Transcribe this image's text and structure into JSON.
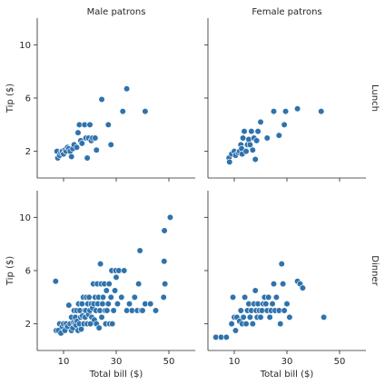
{
  "colors": {
    "marker": "#2f73ad",
    "axis": "#262626"
  },
  "chart_data": {
    "type": "scatter",
    "xlim": [
      0,
      60
    ],
    "ylim": [
      0,
      12
    ],
    "xticks": [
      10,
      30,
      50
    ],
    "yticks": [
      2,
      6,
      10
    ],
    "xlabel": "Total bill ($)",
    "ylabel": "Tip ($)",
    "col_labels": [
      "Male patrons",
      "Female patrons"
    ],
    "row_labels": [
      "Lunch",
      "Dinner"
    ],
    "panels": [
      {
        "row": 0,
        "col": 0,
        "points": [
          [
            7.5,
            2.0
          ],
          [
            7.8,
            1.5
          ],
          [
            8.5,
            1.7
          ],
          [
            9.0,
            1.9
          ],
          [
            9.5,
            2.0
          ],
          [
            10.0,
            1.8
          ],
          [
            10.5,
            2.1
          ],
          [
            11.0,
            2.0
          ],
          [
            11.5,
            2.3
          ],
          [
            12.0,
            2.2
          ],
          [
            12.5,
            2.0
          ],
          [
            13.0,
            1.6
          ],
          [
            13.5,
            2.2
          ],
          [
            14.0,
            2.5
          ],
          [
            15.0,
            2.3
          ],
          [
            15.5,
            3.4
          ],
          [
            16.0,
            4.0
          ],
          [
            16.5,
            2.8
          ],
          [
            17.0,
            2.6
          ],
          [
            18.0,
            4.0
          ],
          [
            18.5,
            3.0
          ],
          [
            19.0,
            1.5
          ],
          [
            19.5,
            3.0
          ],
          [
            20.0,
            4.0
          ],
          [
            20.5,
            2.8
          ],
          [
            21.0,
            3.0
          ],
          [
            22.0,
            3.0
          ],
          [
            22.5,
            2.1
          ],
          [
            24.5,
            5.9
          ],
          [
            27.0,
            4.0
          ],
          [
            28.0,
            2.5
          ],
          [
            32.5,
            5.0
          ],
          [
            34.0,
            6.7
          ],
          [
            41.0,
            5.0
          ]
        ]
      },
      {
        "row": 0,
        "col": 1,
        "points": [
          [
            8.0,
            1.5
          ],
          [
            8.2,
            1.2
          ],
          [
            9.0,
            1.8
          ],
          [
            10.0,
            2.0
          ],
          [
            10.5,
            1.7
          ],
          [
            11.5,
            1.9
          ],
          [
            12.0,
            2.0
          ],
          [
            12.5,
            2.5
          ],
          [
            12.8,
            2.2
          ],
          [
            13.0,
            1.8
          ],
          [
            13.3,
            3.0
          ],
          [
            13.8,
            3.5
          ],
          [
            14.5,
            2.0
          ],
          [
            15.0,
            2.5
          ],
          [
            15.5,
            2.9
          ],
          [
            16.0,
            2.5
          ],
          [
            16.5,
            3.5
          ],
          [
            17.0,
            2.1
          ],
          [
            17.5,
            3.0
          ],
          [
            18.0,
            1.4
          ],
          [
            18.5,
            2.8
          ],
          [
            19.0,
            3.5
          ],
          [
            20.0,
            4.2
          ],
          [
            22.5,
            3.0
          ],
          [
            25.0,
            5.0
          ],
          [
            27.0,
            3.2
          ],
          [
            29.0,
            4.0
          ],
          [
            29.5,
            5.0
          ],
          [
            34.0,
            5.2
          ],
          [
            43.0,
            5.0
          ]
        ]
      },
      {
        "row": 1,
        "col": 0,
        "points": [
          [
            7.0,
            5.2
          ],
          [
            7.2,
            1.5
          ],
          [
            8.0,
            1.5
          ],
          [
            8.5,
            2.0
          ],
          [
            9.0,
            1.3
          ],
          [
            9.5,
            1.8
          ],
          [
            10.0,
            2.0
          ],
          [
            10.5,
            1.5
          ],
          [
            11.0,
            2.0
          ],
          [
            11.5,
            1.8
          ],
          [
            12.0,
            3.4
          ],
          [
            12.5,
            2.0
          ],
          [
            13.0,
            2.5
          ],
          [
            13.0,
            1.5
          ],
          [
            13.5,
            1.7
          ],
          [
            13.8,
            2.1
          ],
          [
            14.0,
            3.0
          ],
          [
            14.3,
            2.0
          ],
          [
            14.5,
            2.5
          ],
          [
            14.8,
            1.9
          ],
          [
            15.0,
            3.0
          ],
          [
            15.2,
            2.2
          ],
          [
            15.5,
            1.5
          ],
          [
            15.7,
            3.5
          ],
          [
            16.0,
            2.0
          ],
          [
            16.2,
            3.0
          ],
          [
            16.5,
            2.5
          ],
          [
            16.7,
            1.6
          ],
          [
            17.0,
            3.5
          ],
          [
            17.2,
            2.6
          ],
          [
            17.5,
            4.0
          ],
          [
            17.7,
            2.0
          ],
          [
            18.0,
            3.0
          ],
          [
            18.2,
            2.5
          ],
          [
            18.5,
            3.0
          ],
          [
            18.7,
            4.0
          ],
          [
            19.0,
            2.0
          ],
          [
            19.2,
            3.5
          ],
          [
            19.5,
            2.7
          ],
          [
            19.7,
            4.0
          ],
          [
            20.0,
            3.0
          ],
          [
            20.2,
            2.0
          ],
          [
            20.5,
            3.5
          ],
          [
            20.7,
            2.5
          ],
          [
            21.0,
            3.2
          ],
          [
            21.3,
            5.0
          ],
          [
            21.5,
            3.5
          ],
          [
            21.7,
            2.3
          ],
          [
            22.0,
            4.0
          ],
          [
            22.3,
            3.0
          ],
          [
            22.5,
            2.0
          ],
          [
            22.8,
            5.0
          ],
          [
            23.0,
            3.5
          ],
          [
            23.3,
            4.0
          ],
          [
            23.5,
            1.7
          ],
          [
            23.8,
            3.0
          ],
          [
            24.0,
            6.5
          ],
          [
            24.3,
            5.0
          ],
          [
            24.5,
            2.5
          ],
          [
            24.8,
            3.5
          ],
          [
            25.0,
            4.0
          ],
          [
            25.5,
            5.0
          ],
          [
            25.8,
            3.0
          ],
          [
            26.0,
            2.0
          ],
          [
            26.3,
            4.5
          ],
          [
            26.5,
            3.0
          ],
          [
            27.0,
            3.5
          ],
          [
            27.3,
            5.0
          ],
          [
            27.5,
            2.0
          ],
          [
            28.0,
            4.0
          ],
          [
            28.3,
            6.0
          ],
          [
            28.5,
            2.0
          ],
          [
            29.0,
            3.0
          ],
          [
            29.5,
            4.5
          ],
          [
            29.8,
            6.0
          ],
          [
            30.0,
            5.5
          ],
          [
            30.5,
            3.5
          ],
          [
            31.0,
            6.0
          ],
          [
            32.0,
            4.0
          ],
          [
            33.0,
            6.0
          ],
          [
            34.0,
            3.0
          ],
          [
            35.0,
            3.5
          ],
          [
            36.0,
            3.0
          ],
          [
            37.0,
            4.0
          ],
          [
            38.0,
            3.0
          ],
          [
            38.5,
            5.0
          ],
          [
            39.0,
            7.5
          ],
          [
            39.5,
            3.0
          ],
          [
            40.0,
            3.0
          ],
          [
            41.0,
            3.5
          ],
          [
            43.0,
            3.5
          ],
          [
            45.0,
            3.0
          ],
          [
            48.0,
            4.0
          ],
          [
            48.2,
            6.7
          ],
          [
            48.3,
            9.0
          ],
          [
            48.5,
            5.0
          ],
          [
            50.5,
            10.0
          ]
        ]
      },
      {
        "row": 1,
        "col": 1,
        "points": [
          [
            3.0,
            1.0
          ],
          [
            5.0,
            1.0
          ],
          [
            7.0,
            1.0
          ],
          [
            9.0,
            2.0
          ],
          [
            9.5,
            4.0
          ],
          [
            10.0,
            2.5
          ],
          [
            10.5,
            1.5
          ],
          [
            11.0,
            2.5
          ],
          [
            12.0,
            2.2
          ],
          [
            12.5,
            3.0
          ],
          [
            13.0,
            2.0
          ],
          [
            13.5,
            2.5
          ],
          [
            14.0,
            4.0
          ],
          [
            14.5,
            2.0
          ],
          [
            15.0,
            3.0
          ],
          [
            15.5,
            3.5
          ],
          [
            16.0,
            2.5
          ],
          [
            16.5,
            3.0
          ],
          [
            17.0,
            2.0
          ],
          [
            17.5,
            3.5
          ],
          [
            18.0,
            4.5
          ],
          [
            18.3,
            3.0
          ],
          [
            18.7,
            2.5
          ],
          [
            19.0,
            3.5
          ],
          [
            19.5,
            3.0
          ],
          [
            20.0,
            2.5
          ],
          [
            20.5,
            3.0
          ],
          [
            21.0,
            3.5
          ],
          [
            21.5,
            4.0
          ],
          [
            22.0,
            3.5
          ],
          [
            22.5,
            3.0
          ],
          [
            23.0,
            4.0
          ],
          [
            23.5,
            2.5
          ],
          [
            24.0,
            3.0
          ],
          [
            24.5,
            3.5
          ],
          [
            25.0,
            5.0
          ],
          [
            25.5,
            3.0
          ],
          [
            26.0,
            4.0
          ],
          [
            27.0,
            3.0
          ],
          [
            27.5,
            2.0
          ],
          [
            28.0,
            6.5
          ],
          [
            28.5,
            5.0
          ],
          [
            29.0,
            3.0
          ],
          [
            30.0,
            3.5
          ],
          [
            31.0,
            2.5
          ],
          [
            34.0,
            5.2
          ],
          [
            35.0,
            5.0
          ],
          [
            36.0,
            4.7
          ],
          [
            44.0,
            2.5
          ]
        ]
      }
    ]
  }
}
